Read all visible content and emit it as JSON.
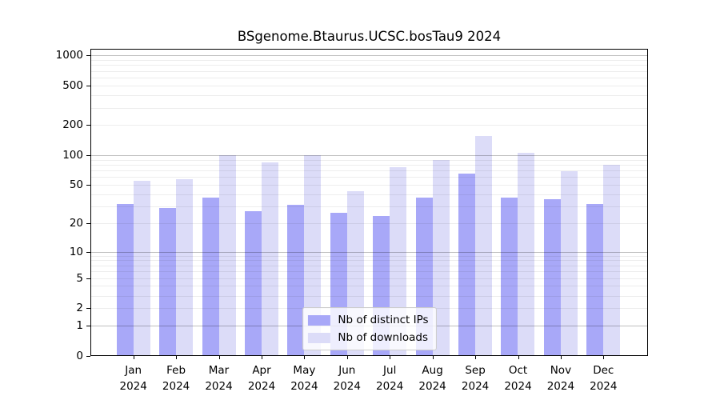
{
  "chart_data": {
    "type": "bar",
    "title": "BSgenome.Btaurus.UCSC.bosTau9 2024",
    "year_label": "2024",
    "months": [
      "Jan",
      "Feb",
      "Mar",
      "Apr",
      "May",
      "Jun",
      "Jul",
      "Aug",
      "Sep",
      "Oct",
      "Nov",
      "Dec"
    ],
    "series": [
      {
        "name": "Nb of distinct IPs",
        "color": "#a8a8f8",
        "values": [
          32,
          29,
          37,
          27,
          31,
          26,
          24,
          37,
          65,
          37,
          36,
          32
        ]
      },
      {
        "name": "Nb of downloads",
        "color": "#dcdcf8",
        "values": [
          55,
          57,
          100,
          85,
          100,
          43,
          75,
          90,
          155,
          105,
          69,
          80
        ]
      }
    ],
    "y_axis": {
      "scale": "log1p",
      "tick_labels": [
        0,
        1,
        2,
        5,
        10,
        20,
        50,
        100,
        200,
        500,
        1000
      ],
      "major_gridlines": [
        1,
        10,
        100,
        1000
      ],
      "top_value": 1160,
      "ylim": [
        0,
        1160
      ]
    },
    "xlabel": "",
    "ylabel": "",
    "grid": true,
    "legend_position": "lower-center-inside"
  },
  "colors": {
    "distinct_ips": "#a8a8f8",
    "downloads": "#dcdcf8",
    "major_grid": "rgba(0,0,0,0.25)",
    "minor_grid": "rgba(0,0,0,0.07)",
    "frame": "#000000"
  }
}
